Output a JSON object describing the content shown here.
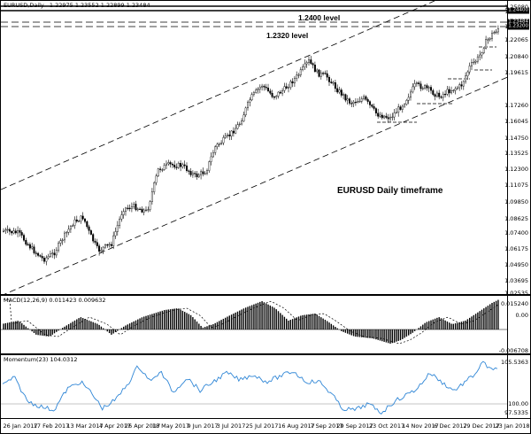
{
  "price": {
    "title": "EURUSD,Daily",
    "ohlc": "1.22975 1.23552 1.22899 1.23484",
    "yticks": [
      "1.25080",
      "1.24400",
      "1.23200",
      "1.22065",
      "1.20840",
      "1.19615",
      "1.17260",
      "1.16045",
      "1.14750",
      "1.13525",
      "1.12300",
      "1.11075",
      "1.09850",
      "1.08625",
      "1.07400",
      "1.06175",
      "1.04950",
      "1.03695",
      "1.02535"
    ],
    "tags": [
      "1.24400",
      "1.23484",
      "1.23200"
    ],
    "level_1_label": "1.2400 level",
    "level_2_label": "1.2320 level",
    "caption": "EURUSD Daily timeframe"
  },
  "macd": {
    "title": "MACD(12,26,9) 0.011423 0.009632",
    "yticks": [
      "0.015240",
      "0.00",
      "-0.006708"
    ]
  },
  "momentum": {
    "title": "Momentum(23) 104.0312",
    "yticks": [
      "105.5363",
      "100.00",
      "97.5335"
    ]
  },
  "xaxis": [
    "26 Jan 2017",
    "17 Feb 2017",
    "13 Mar 2017",
    "4 Apr 2017",
    "26 Apr 2017",
    "18 May 2017",
    "9 Jun 2017",
    "3 Jul 2017",
    "25 Jul 2017",
    "16 Aug 2017",
    "7 Sep 2017",
    "29 Sep 2017",
    "23 Oct 2017",
    "14 Nov 2017",
    "6 Dec 2017",
    "29 Dec 2017",
    "23 Jan 2018"
  ],
  "colors": {
    "bg": "#ffffff",
    "fg": "#000000",
    "momentum": "#2f86d6",
    "tag_bg": "#000000"
  }
}
